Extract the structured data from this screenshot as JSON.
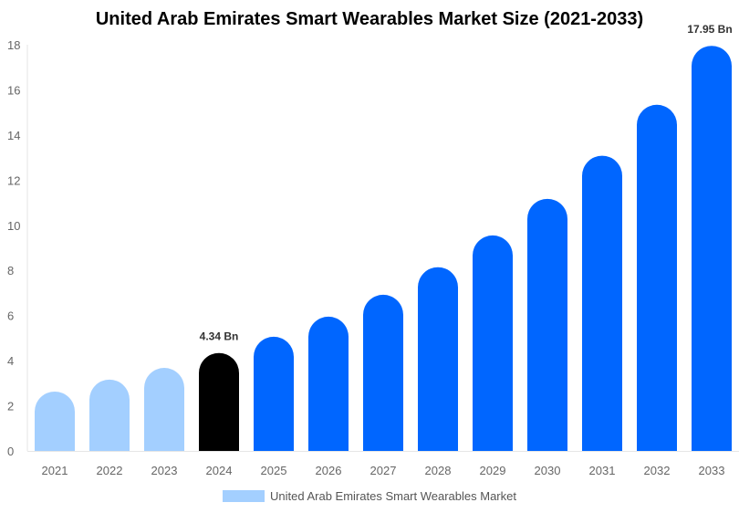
{
  "chart_data": {
    "type": "bar",
    "title": "United Arab Emirates Smart Wearables Market Size (2021-2033)",
    "xlabel": "",
    "ylabel": "",
    "categories": [
      "2021",
      "2022",
      "2023",
      "2024",
      "2025",
      "2026",
      "2027",
      "2028",
      "2029",
      "2030",
      "2031",
      "2032",
      "2033"
    ],
    "series": [
      {
        "name": "United Arab Emirates Smart Wearables Market",
        "values": [
          2.63,
          3.16,
          3.68,
          4.34,
          5.06,
          5.95,
          6.92,
          8.14,
          9.55,
          11.17,
          13.08,
          15.34,
          17.95
        ]
      }
    ],
    "data_labels": {
      "2024": "4.34 Bn",
      "2033": "17.95 Bn"
    },
    "ylim": [
      0,
      18
    ],
    "yticks": [
      0,
      2,
      4,
      6,
      8,
      10,
      12,
      14,
      16,
      18
    ],
    "grid": false,
    "legend_position": "bottom",
    "colors": {
      "historical": "#a3cfff",
      "base_year": "#000000",
      "forecast": "#0066ff"
    }
  }
}
